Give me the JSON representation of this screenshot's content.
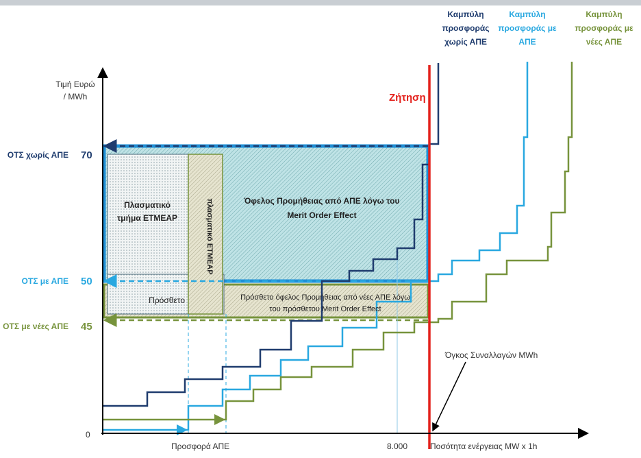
{
  "y_axis": {
    "title": [
      "Τιμή Ευρώ",
      "/ MWh"
    ],
    "levels": [
      {
        "name": "ΟΤΣ χωρίς ΑΠΕ",
        "value": "70"
      },
      {
        "name": "ΟΤΣ με ΑΠΕ",
        "value": "50"
      },
      {
        "name": "ΟΤΣ με νέες ΑΠΕ",
        "value": "45"
      }
    ],
    "origin": "0"
  },
  "x_axis": {
    "title": "Ποσότητα ενέργειας MW x 1h",
    "offer": "Προσφορά ΑΠΕ",
    "volume_mark": "8.000"
  },
  "curves": [
    {
      "label": [
        "Καμπύλη",
        "προσφοράς",
        "χωρίς ΑΠΕ"
      ]
    },
    {
      "label": [
        "Καμπύλη",
        "προσφοράς με",
        "ΑΠΕ"
      ]
    },
    {
      "label": [
        "Καμπύλη",
        "προσφοράς με",
        "νέες ΑΠΕ"
      ]
    }
  ],
  "demand": "Ζήτηση",
  "regions": {
    "fictitious": [
      "Πλασματικό",
      "τμήμα ΕΤΜΕΑΡ"
    ],
    "fictitious_vertical": "πλασματικό ΕΤΜΕΑΡ",
    "benefit": [
      "Όφελος Προμήθειας από ΑΠΕ λόγω του",
      "Merit Order Effect"
    ],
    "additional": "Πρόσθετο",
    "additional_benefit": [
      "Πρόσθετο όφελος Προμήθειας από νέες ΑΠΕ λόγω",
      "του πρόσθετου Merit Order Effect"
    ]
  },
  "volume_note": "Όγκος Συναλλαγών MWh"
}
